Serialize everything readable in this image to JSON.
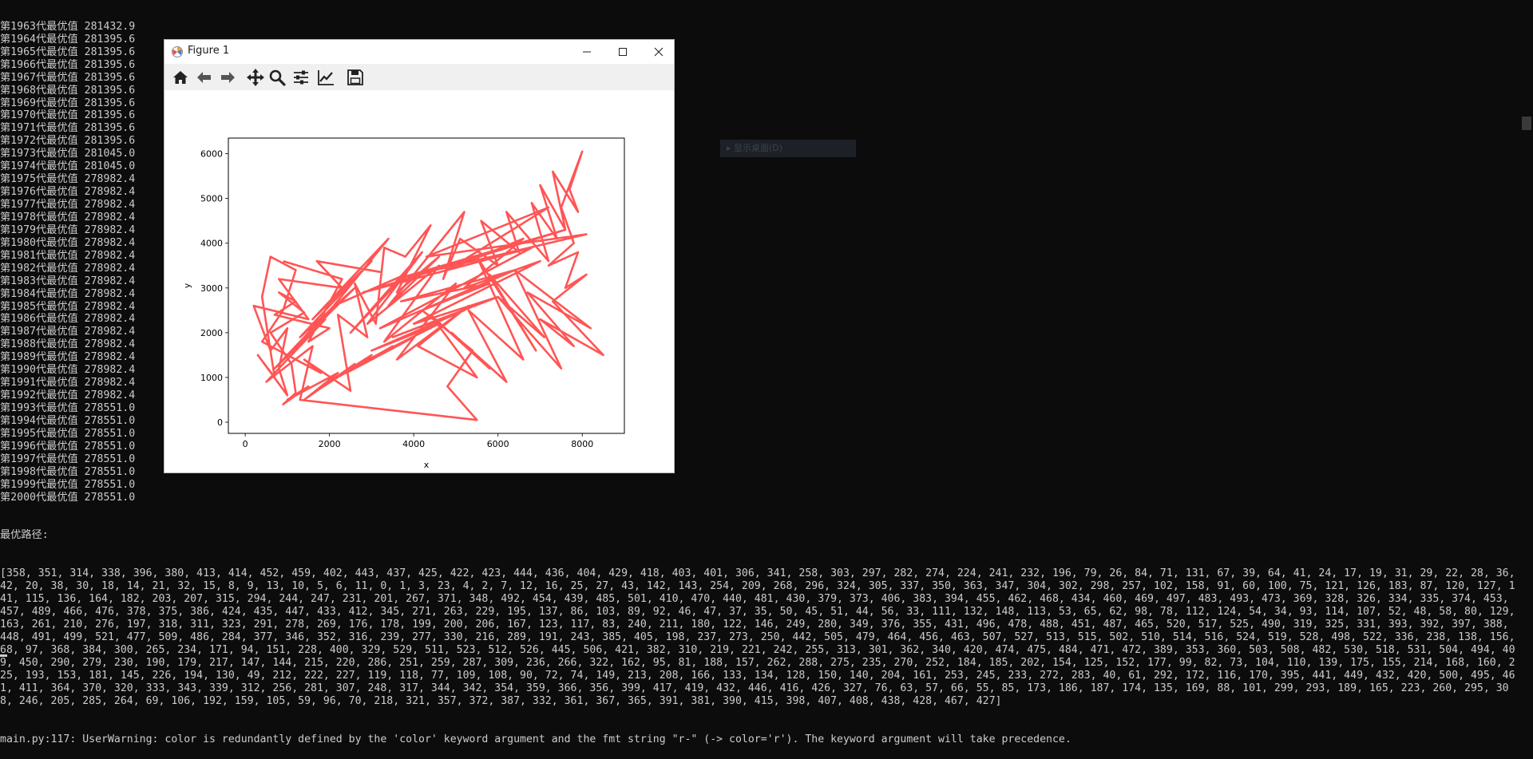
{
  "console": {
    "generation_lines": [
      "第1963代最优值 281432.9",
      "第1964代最优值 281395.6",
      "第1965代最优值 281395.6",
      "第1966代最优值 281395.6",
      "第1967代最优值 281395.6",
      "第1968代最优值 281395.6",
      "第1969代最优值 281395.6",
      "第1970代最优值 281395.6",
      "第1971代最优值 281395.6",
      "第1972代最优值 281395.6",
      "第1973代最优值 281045.0",
      "第1974代最优值 281045.0",
      "第1975代最优值 278982.4",
      "第1976代最优值 278982.4",
      "第1977代最优值 278982.4",
      "第1978代最优值 278982.4",
      "第1979代最优值 278982.4",
      "第1980代最优值 278982.4",
      "第1981代最优值 278982.4",
      "第1982代最优值 278982.4",
      "第1983代最优值 278982.4",
      "第1984代最优值 278982.4",
      "第1985代最优值 278982.4",
      "第1986代最优值 278982.4",
      "第1987代最优值 278982.4",
      "第1988代最优值 278982.4",
      "第1989代最优值 278982.4",
      "第1990代最优值 278982.4",
      "第1991代最优值 278982.4",
      "第1992代最优值 278982.4",
      "第1993代最优值 278551.0",
      "第1994代最优值 278551.0",
      "第1995代最优值 278551.0",
      "第1996代最优值 278551.0",
      "第1997代最优值 278551.0",
      "第1998代最优值 278551.0",
      "第1999代最优值 278551.0",
      "第2000代最优值 278551.0"
    ],
    "best_path_label": "最优路径:",
    "best_path": "[358, 351, 314, 338, 396, 380, 413, 414, 452, 459, 402, 443, 437, 425, 422, 423, 444, 436, 404, 429, 418, 403, 401, 306, 341, 258, 303, 297, 282, 274, 224, 241, 232, 196, 79, 26, 84, 71, 131, 67, 39, 64, 41, 24, 17, 19, 31, 29, 22, 28, 36, 42, 20, 38, 30, 18, 14, 21, 32, 15, 8, 9, 13, 10, 5, 6, 11, 0, 1, 3, 23, 4, 2, 7, 12, 16, 25, 27, 43, 142, 143, 254, 209, 268, 296, 324, 305, 337, 350, 363, 347, 304, 302, 298, 257, 102, 158, 91, 60, 100, 75, 121, 126, 183, 87, 120, 127, 141, 115, 136, 164, 182, 203, 207, 315, 294, 244, 247, 231, 201, 267, 371, 348, 492, 454, 439, 485, 501, 410, 470, 440, 481, 430, 379, 373, 406, 383, 394, 455, 462, 468, 434, 460, 469, 497, 483, 493, 473, 369, 328, 326, 334, 335, 374, 453, 457, 489, 466, 476, 378, 375, 386, 424, 435, 447, 433, 412, 345, 271, 263, 229, 195, 137, 86, 103, 89, 92, 46, 47, 37, 35, 50, 45, 51, 44, 56, 33, 111, 132, 148, 113, 53, 65, 62, 98, 78, 112, 124, 54, 34, 93, 114, 107, 52, 48, 58, 80, 129, 163, 261, 210, 276, 197, 318, 311, 323, 291, 278, 269, 176, 178, 199, 200, 206, 167, 123, 117, 83, 240, 211, 180, 122, 146, 249, 280, 349, 376, 355, 431, 496, 478, 488, 451, 487, 465, 520, 517, 525, 490, 319, 325, 331, 393, 392, 397, 388, 448, 491, 499, 521, 477, 509, 486, 284, 377, 346, 352, 316, 239, 277, 330, 216, 289, 191, 243, 385, 405, 198, 237, 273, 250, 442, 505, 479, 464, 456, 463, 507, 527, 513, 515, 502, 510, 514, 516, 524, 519, 528, 498, 522, 336, 238, 138, 156, 68, 97, 368, 384, 300, 265, 234, 171, 94, 151, 228, 400, 329, 529, 511, 523, 512, 526, 445, 506, 421, 382, 310, 219, 221, 242, 255, 313, 301, 362, 340, 420, 474, 475, 484, 471, 472, 389, 353, 360, 503, 508, 482, 530, 518, 531, 504, 494, 409, 450, 290, 279, 230, 190, 179, 217, 147, 144, 215, 220, 286, 251, 259, 287, 309, 236, 266, 322, 162, 95, 81, 188, 157, 262, 288, 275, 235, 270, 252, 184, 185, 202, 154, 125, 152, 177, 99, 82, 73, 104, 110, 139, 175, 155, 214, 168, 160, 225, 193, 153, 181, 145, 226, 194, 130, 49, 212, 222, 227, 119, 118, 77, 109, 108, 90, 72, 74, 149, 213, 208, 166, 133, 134, 128, 150, 140, 204, 161, 253, 245, 233, 272, 283, 40, 61, 292, 172, 116, 170, 395, 441, 449, 432, 420, 500, 495, 461, 411, 364, 370, 320, 333, 343, 339, 312, 256, 281, 307, 248, 317, 344, 342, 354, 359, 366, 356, 399, 417, 419, 432, 446, 416, 426, 327, 76, 63, 57, 66, 55, 85, 173, 186, 187, 174, 135, 169, 88, 101, 299, 293, 189, 165, 223, 260, 295, 308, 246, 205, 285, 264, 69, 106, 192, 159, 105, 59, 96, 70, 218, 321, 357, 372, 387, 332, 361, 367, 365, 391, 381, 390, 415, 398, 407, 408, 438, 428, 467, 427]",
    "warning": "main.py:117: UserWarning: color is redundantly defined by the 'color' keyword argument and the fmt string \"r-\" (-> color='r'). The keyword argument will take precedence."
  },
  "figure_window": {
    "title": "Figure 1",
    "toolbar": {
      "home": "home-icon",
      "back": "arrow-left-icon",
      "forward": "arrow-right-icon",
      "pan": "move-icon",
      "zoom": "magnifier-icon",
      "subplots": "sliders-icon",
      "edit": "line-chart-icon",
      "save": "save-icon"
    },
    "window_controls": [
      "minimize",
      "maximize",
      "close"
    ]
  },
  "chart_data": {
    "type": "line",
    "xlabel": "x",
    "ylabel": "y",
    "xlim": [
      -400,
      9000
    ],
    "ylim": [
      -250,
      6350
    ],
    "xticks": [
      0,
      2000,
      4000,
      6000,
      8000
    ],
    "yticks": [
      0,
      1000,
      2000,
      3000,
      4000,
      5000,
      6000
    ],
    "line_color": "#ff5555",
    "grid": false,
    "series": [
      {
        "name": "",
        "x": [
          3250,
          1700,
          2300,
          800,
          1500,
          200,
          600,
          1000,
          800,
          1000,
          300,
          700,
          400,
          600,
          1200,
          900,
          400,
          1800,
          1400,
          2500,
          2200,
          2900,
          2600,
          3100,
          3300,
          3800,
          4400,
          3600,
          4600,
          3400,
          5200,
          4700,
          5100,
          6000,
          5600,
          6500,
          6200,
          7200,
          6800,
          7400,
          7000,
          7600,
          7300,
          7900,
          7700,
          8000,
          7500,
          7800,
          7200,
          7900,
          7600,
          8100,
          7300,
          8500,
          7000,
          7800,
          6700,
          8200,
          6400,
          7500,
          6000,
          7100,
          5800,
          6900,
          5500,
          6600,
          5300,
          6200,
          4900,
          5800,
          4400,
          5500,
          4100,
          5300,
          3600,
          5000,
          3300,
          4600,
          2900,
          4200,
          2500,
          3800,
          2100,
          3400,
          1600,
          3000,
          1300,
          2600,
          1000,
          2200,
          700,
          1900,
          500,
          1600,
          1300,
          5500,
          4800,
          5400,
          4200,
          5800,
          3700,
          6400,
          3200,
          6800,
          2800,
          7600,
          3600,
          8100,
          4300,
          7200,
          4800,
          6600,
          5200,
          7000,
          4000,
          6000,
          3500,
          5200,
          3000,
          4600,
          2700,
          4000,
          2400,
          3500,
          2000,
          3000,
          1700,
          2600,
          1400,
          2200,
          1200,
          1800,
          1000,
          1500,
          900,
          1200,
          1100,
          600,
          1400,
          800,
          1200,
          700,
          2000,
          1500,
          2300,
          900
        ],
        "y": [
          3350,
          3600,
          3000,
          3200,
          2300,
          2600,
          1600,
          2100,
          1200,
          600,
          1500,
          1000,
          2800,
          3700,
          3400,
          2500,
          1800,
          1100,
          1400,
          700,
          2400,
          1900,
          3100,
          2200,
          3900,
          3700,
          4400,
          2900,
          3700,
          2600,
          4700,
          3200,
          4100,
          3500,
          4500,
          3800,
          4700,
          3600,
          4900,
          4100,
          5300,
          4300,
          5600,
          4700,
          5200,
          6050,
          4800,
          4000,
          3500,
          3800,
          3000,
          3300,
          2700,
          1500,
          2300,
          1700,
          2900,
          2100,
          3400,
          1200,
          2800,
          1900,
          3300,
          1600,
          3700,
          1400,
          2500,
          900,
          2000,
          1200,
          2400,
          1000,
          1700,
          2600,
          1400,
          3100,
          1800,
          3500,
          2200,
          3800,
          2000,
          3300,
          2600,
          4100,
          2300,
          3600,
          1900,
          3000,
          1500,
          2700,
          1200,
          2300,
          900,
          1700,
          500,
          50,
          800,
          1600,
          2500,
          3100,
          2700,
          3400,
          2100,
          3900,
          2900,
          4300,
          3200,
          4200,
          3700,
          4800,
          3400,
          4100,
          3000,
          3600,
          2200,
          2800,
          1900,
          2500,
          1600,
          2200,
          1300,
          1900,
          1100,
          1700,
          900,
          1500,
          700,
          1300,
          500,
          1100,
          600,
          900,
          500,
          800,
          400,
          650,
          1300,
          2000,
          2450,
          2900,
          2700,
          2400,
          2100,
          1800,
          3200,
          3600
        ]
      }
    ]
  },
  "ghost_popup": {
    "text": "▸  显示桌面(D)"
  }
}
